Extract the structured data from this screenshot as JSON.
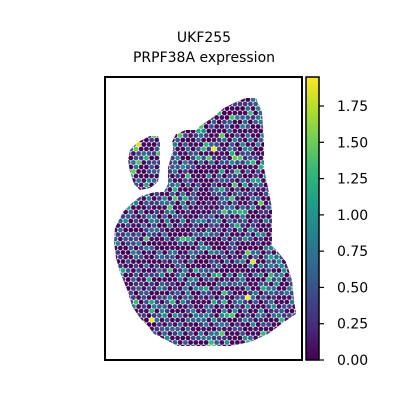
{
  "chart_data": {
    "type": "scatter",
    "subtype": "hexagonal-spot spatial expression map",
    "title": "UKF255",
    "subtitle": "PRPF38A expression",
    "xlabel": "",
    "ylabel": "",
    "colormap": "viridis",
    "colorbar": {
      "min": 0.0,
      "max": 1.95,
      "ticks": [
        0.0,
        0.25,
        0.5,
        0.75,
        1.0,
        1.25,
        1.5,
        1.75
      ],
      "tick_labels": [
        "0.00",
        "0.25",
        "0.50",
        "0.75",
        "1.00",
        "1.25",
        "1.50",
        "1.75"
      ],
      "placement": "right"
    },
    "value_distribution": {
      "background_value": 0.05,
      "low_value": 0.45,
      "mid_value": 0.8,
      "high_value": 1.3,
      "peak_value": 1.95
    }
  },
  "colors": {
    "axes": "#000000",
    "background": "#ffffff",
    "viridis_stops": [
      "#440154",
      "#482878",
      "#3e4989",
      "#31688e",
      "#26828e",
      "#1f9e89",
      "#35b779",
      "#6ece58",
      "#b5de2b",
      "#fde725"
    ]
  }
}
